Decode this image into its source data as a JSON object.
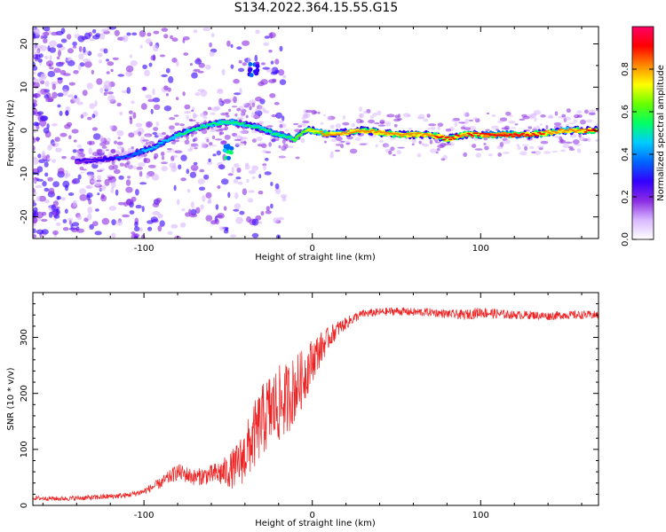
{
  "title": "S134.2022.364.15.55.G15",
  "chart_data": [
    {
      "type": "heatmap",
      "title": "",
      "xlabel": "Height of straight line (km)",
      "ylabel": "Frequency (Hz)",
      "xlim": [
        -166,
        170
      ],
      "ylim": [
        -25,
        24
      ],
      "x_ticks": [
        -100,
        0,
        100
      ],
      "x_tick_labels": [
        "-100",
        "0",
        "100"
      ],
      "y_ticks": [
        20,
        10,
        0,
        -10,
        -20
      ],
      "y_tick_labels": [
        "20",
        "10",
        "0",
        "-10",
        "-20"
      ],
      "colorbar": {
        "label": "Normalized spectral amplitude",
        "range": [
          0,
          1
        ],
        "ticks": [
          0.0,
          0.2,
          0.4,
          0.6,
          0.8
        ],
        "tick_labels": [
          "0.0",
          "0.2",
          "0.4",
          "0.6",
          "0.8"
        ],
        "colors": [
          "#ffffff",
          "#d9b8ff",
          "#8a2be2",
          "#3300ff",
          "#0066ff",
          "#00ccff",
          "#00ff66",
          "#66ff00",
          "#ffff00",
          "#ff8800",
          "#ff0000",
          "#ff0066"
        ]
      },
      "ridge": [
        {
          "x": -130,
          "y": -7,
          "a": 0.25
        },
        {
          "x": -110,
          "y": -6,
          "a": 0.35
        },
        {
          "x": -95,
          "y": -4,
          "a": 0.45
        },
        {
          "x": -80,
          "y": -1,
          "a": 0.5
        },
        {
          "x": -65,
          "y": 1,
          "a": 0.5
        },
        {
          "x": -50,
          "y": 2,
          "a": 0.55
        },
        {
          "x": -35,
          "y": 1,
          "a": 0.5
        },
        {
          "x": -20,
          "y": -1,
          "a": 0.55
        },
        {
          "x": -10,
          "y": -2,
          "a": 0.6
        },
        {
          "x": -5,
          "y": 0,
          "a": 0.65
        },
        {
          "x": 0,
          "y": 0,
          "a": 0.75
        },
        {
          "x": 10,
          "y": -1,
          "a": 0.8
        },
        {
          "x": 30,
          "y": 0,
          "a": 0.85
        },
        {
          "x": 50,
          "y": -1,
          "a": 0.85
        },
        {
          "x": 70,
          "y": -1,
          "a": 0.85
        },
        {
          "x": 80,
          "y": -2,
          "a": 0.9
        },
        {
          "x": 90,
          "y": -1,
          "a": 0.85
        },
        {
          "x": 110,
          "y": -1,
          "a": 0.95
        },
        {
          "x": 130,
          "y": -1,
          "a": 0.9
        },
        {
          "x": 150,
          "y": 0,
          "a": 0.8
        },
        {
          "x": 168,
          "y": 0,
          "a": 0.9
        }
      ],
      "secondary_features": [
        {
          "x": -35,
          "y": 14,
          "a": 0.35
        },
        {
          "x": -50,
          "y": -5,
          "a": 0.5
        }
      ]
    },
    {
      "type": "line",
      "title": "",
      "xlabel": "Height of straight line (km)",
      "ylabel": "SNR (10 * v/v)",
      "xlim": [
        -166,
        170
      ],
      "ylim": [
        0,
        380
      ],
      "x_ticks": [
        -100,
        0,
        100
      ],
      "x_tick_labels": [
        "-100",
        "0",
        "100"
      ],
      "y_ticks": [
        0,
        100,
        200,
        300
      ],
      "y_tick_labels": [
        "0",
        "100",
        "200",
        "300"
      ],
      "line_color": "#ee2222",
      "series": [
        {
          "x": [
            -166,
            -150,
            -130,
            -110,
            -100,
            -90,
            -80,
            -70,
            -60,
            -50,
            -45,
            -40,
            -35,
            -30,
            -25,
            -20,
            -15,
            -10,
            -5,
            0,
            5,
            10,
            15,
            20,
            25,
            30,
            40,
            50,
            60,
            70,
            80,
            90,
            100,
            110,
            120,
            130,
            140,
            150,
            160,
            170
          ],
          "mean": [
            13,
            12,
            14,
            18,
            25,
            40,
            60,
            50,
            55,
            60,
            70,
            90,
            120,
            150,
            170,
            180,
            190,
            210,
            230,
            260,
            280,
            300,
            315,
            325,
            335,
            342,
            345,
            347,
            345,
            345,
            342,
            340,
            345,
            342,
            340,
            340,
            338,
            340,
            340,
            340
          ],
          "spread": [
            8,
            8,
            10,
            10,
            12,
            20,
            30,
            30,
            35,
            60,
            80,
            100,
            120,
            130,
            140,
            140,
            130,
            120,
            100,
            80,
            60,
            40,
            30,
            22,
            18,
            15,
            15,
            15,
            15,
            15,
            15,
            18,
            20,
            18,
            15,
            15,
            15,
            15,
            15,
            15
          ]
        }
      ]
    }
  ]
}
